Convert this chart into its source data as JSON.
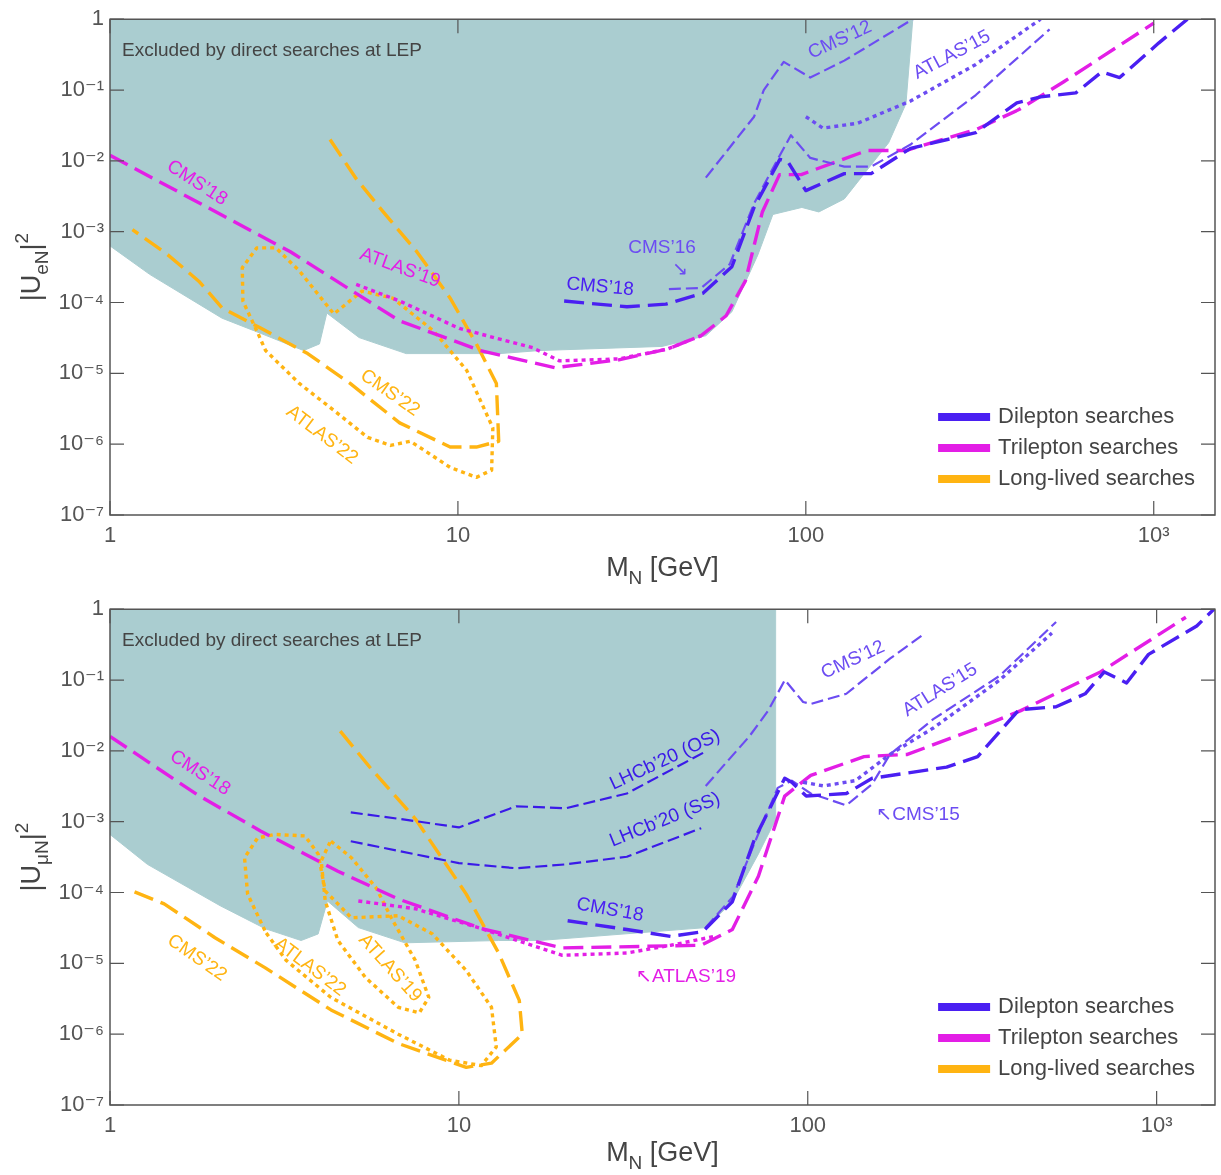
{
  "chart_data": [
    {
      "type": "line",
      "xlabel": "M$_{N}$ [GeV]",
      "ylabel": "|U$_{eN}$|$^{2}$",
      "log": "xy",
      "legend": "bottom right",
      "xlim": [
        1,
        1500
      ],
      "ylim": [
        1e-07,
        1
      ],
      "xticks": [
        1,
        10,
        100,
        {
          "value": 1000,
          "label": "10³"
        }
      ],
      "yticks": [
        {
          "value": 1e-07,
          "label": "10⁻⁷"
        },
        {
          "value": 1e-06,
          "label": "10⁻⁶"
        },
        {
          "value": 1e-05,
          "label": "10⁻⁵"
        },
        {
          "value": 0.0001,
          "label": "10⁻⁴"
        },
        {
          "value": 0.001,
          "label": "10⁻³"
        },
        {
          "value": 0.01,
          "label": "10⁻²"
        },
        {
          "value": 0.1,
          "label": "10⁻¹"
        },
        1
      ],
      "series": [
        {
          "color": "#aacdd0",
          "x": [
            1,
            1.3,
            2.1,
            2.7,
            3.6,
            4.0,
            4.2,
            5.2,
            7.1,
            13.2,
            17.2,
            38.6,
            51.6,
            61.3,
            72.8,
            80.4,
            97.4,
            109,
            129,
            173,
            194,
            203
          ],
          "values": [
            0.00063,
            0.00025,
            6e-05,
            3.7e-05,
            2.1e-05,
            2.6e-05,
            7.1e-05,
            3.2e-05,
            1.9e-05,
            1.9e-05,
            2.1e-05,
            2.4e-05,
            3.4e-05,
            7.4e-05,
            0.00047,
            0.00175,
            0.0022,
            0.0019,
            0.0029,
            0.018,
            0.064,
            1
          ],
          "lower": [
            0.00063,
            0.00025,
            6e-05,
            3.7e-05,
            2.1e-05,
            2.6e-05,
            7.1e-05,
            3.2e-05,
            1.9e-05,
            1.9e-05,
            2.1e-05,
            2.4e-05,
            3.4e-05,
            7.4e-05,
            0.00047,
            0.00175,
            0.0022,
            0.0019,
            0.0029,
            0.018,
            0.064,
            1
          ],
          "upper": [
            1,
            1,
            1,
            1,
            1,
            1,
            1,
            1,
            1,
            1,
            1,
            1,
            1,
            1,
            1,
            1,
            1,
            1,
            1,
            1,
            1,
            1
          ]
        },
        {
          "name": "Dilepton searches",
          "color": "#4a1ff2",
          "line_style": "dashed",
          "x": [
            20.2,
            30.6,
            39.6,
            50.6,
            61.3,
            71,
            84.2,
            88.7,
            100,
            129,
            154,
            200,
            308,
            404,
            473,
            597,
            709,
            798,
            1033,
            1250
          ],
          "values": [
            0.000105,
            8.7e-05,
            9.5e-05,
            0.000135,
            0.00032,
            0.0022,
            0.0105,
            0.0098,
            0.0038,
            0.0066,
            0.0066,
            0.015,
            0.025,
            0.066,
            0.08,
            0.091,
            0.18,
            0.15,
            0.46,
            1
          ]
        },
        {
          "color": "#6c4cf2",
          "line_style": "dashed",
          "x": [
            40.4,
            50,
            60.5,
            71,
            83,
            90.6,
            103,
            129,
            154,
            200,
            308,
            502
          ],
          "values": [
            0.000155,
            0.00016,
            0.00035,
            0.0025,
            0.0105,
            0.023,
            0.011,
            0.0083,
            0.0083,
            0.017,
            0.085,
            0.72
          ]
        },
        {
          "color": "#6c4cf2",
          "line_style": "dashed",
          "x": [
            51.6,
            71,
            75.7,
            86.4,
            103,
            129,
            203
          ],
          "values": [
            0.0058,
            0.042,
            0.1,
            0.25,
            0.15,
            0.26,
            1
          ]
        },
        {
          "color": "#6c4cf2",
          "line_style": "dotted",
          "x": [
            100,
            112,
            141,
            200,
            308,
            473
          ],
          "values": [
            0.042,
            0.029,
            0.034,
            0.07,
            0.23,
            1
          ]
        },
        {
          "name": "Trilepton searches",
          "color": "#e31ee6",
          "line_style": "dashed",
          "x": [
            1,
            3.3,
            6.8,
            11.6,
            19,
            29,
            40,
            50,
            59,
            67,
            75,
            84,
            97,
            150,
            194,
            310,
            410,
            550,
            1000
          ],
          "values": [
            0.012,
            0.00052,
            5.5e-05,
            2.1e-05,
            1.2e-05,
            1.55e-05,
            2.2e-05,
            3.4e-05,
            6.5e-05,
            0.0002,
            0.0019,
            0.0064,
            0.0064,
            0.014,
            0.014,
            0.028,
            0.053,
            0.13,
            0.88
          ]
        },
        {
          "color": "#e31ee6",
          "line_style": "dotted",
          "x": [
            5.1,
            6.8,
            10.1,
            16.4,
            19.6,
            29,
            40,
            50
          ],
          "values": [
            0.00018,
            0.000105,
            4.3e-05,
            2.3e-05,
            1.5e-05,
            1.6e-05,
            2.2e-05,
            3.4e-05
          ]
        },
        {
          "name": "Long-lived searches",
          "color": "#ffb412",
          "line_style": "dashed",
          "x": [
            4.29,
            5.1,
            6.1,
            7.6,
            9.5,
            11.3,
            12.9,
            13.1,
            11.3,
            9.5,
            6.8,
            4.9,
            3.7,
            2.7,
            2.1,
            1.8,
            1.46,
            1.16
          ],
          "values": [
            0.02,
            0.0056,
            0.0019,
            0.00053,
            0.000115,
            2.6e-05,
            7.2e-06,
            1.1e-06,
            9.1e-07,
            9.1e-07,
            2e-06,
            7.2e-06,
            1.9e-05,
            4.4e-05,
            8.4e-05,
            0.0002,
            0.00048,
            0.00107
          ]
        },
        {
          "color": "#ffb412",
          "line_style": "dotted",
          "x": [
            2.64,
            2.41,
            2.4,
            2.64,
            3.0,
            3.5,
            4.4,
            5.3,
            6.5,
            8.5,
            10.6,
            12.6,
            12.5,
            11.3,
            9.5,
            7.3,
            6.4,
            5.5,
            4.4,
            3.5,
            2.8,
            2.66
          ],
          "values": [
            4e-05,
            0.000105,
            0.00031,
            0.00059,
            0.00059,
            0.00028,
            6.9e-05,
            0.000145,
            0.000115,
            4e-05,
            1.1e-05,
            1.7e-06,
            4.3e-07,
            3.4e-07,
            4.7e-07,
            1.1e-06,
            9.6e-07,
            1.25e-06,
            3e-06,
            7.2e-06,
            2.1e-05,
            3.7e-05
          ]
        }
      ],
      "annotations": [
        "Excluded by direct searches at LEP",
        "CMS’18",
        "ATLAS’19",
        "CMS’22",
        "ATLAS’22",
        "CMS’18",
        "CMS’16",
        "↘",
        "CMS’12",
        "ATLAS’15"
      ]
    },
    {
      "type": "line",
      "xlabel": "M$_{N}$ [GeV]",
      "ylabel": "|U$_{μN}$|$^{2}$",
      "log": "xy",
      "legend": "bottom right",
      "xlim": [
        1,
        1470
      ],
      "ylim": [
        1e-07,
        1
      ],
      "xticks": [
        1,
        10,
        100,
        {
          "value": 1000,
          "label": "10³"
        }
      ],
      "yticks": [
        {
          "value": 1e-07,
          "label": "10⁻⁷"
        },
        {
          "value": 1e-06,
          "label": "10⁻⁶"
        },
        {
          "value": 1e-05,
          "label": "10⁻⁵"
        },
        {
          "value": 0.0001,
          "label": "10⁻⁴"
        },
        {
          "value": 0.001,
          "label": "10⁻³"
        },
        {
          "value": 0.01,
          "label": "10⁻²"
        },
        {
          "value": 0.1,
          "label": "10⁻¹"
        },
        1
      ],
      "series": [
        {
          "color": "#aacdd0",
          "x": [
            1,
            1.28,
            2.07,
            2.78,
            3.53,
            3.95,
            4.2,
            5.15,
            7.0,
            13.0,
            17.0,
            51.2,
            60.8,
            72.2,
            80.9,
            80.9
          ],
          "values": [
            0.00066,
            0.00025,
            6.5e-05,
            3.1e-05,
            2.1e-05,
            2.6e-05,
            7.6e-05,
            3.2e-05,
            1.95e-05,
            2.1e-05,
            2.1e-05,
            3.2e-05,
            7.4e-05,
            0.00035,
            0.00107,
            1
          ],
          "lower": [
            0.00066,
            0.00025,
            6.5e-05,
            3.1e-05,
            2.1e-05,
            2.6e-05,
            7.6e-05,
            3.2e-05,
            1.95e-05,
            2.1e-05,
            2.1e-05,
            3.2e-05,
            7.4e-05,
            0.00035,
            0.00107,
            1
          ],
          "upper": [
            1,
            1,
            1,
            1,
            1,
            1,
            1,
            1,
            1,
            1,
            1,
            1,
            1,
            1,
            1,
            1
          ]
        },
        {
          "name": "Dilepton searches",
          "color": "#4a1ff2",
          "line_style": "dashed",
          "x": [
            20.5,
            30.3,
            40.5,
            50,
            60.8,
            70.3,
            85.9,
            90,
            99,
            129,
            153,
            250,
            307,
            403,
            515,
            624,
            708,
            820,
            948,
            1303,
            1460
          ],
          "values": [
            4e-05,
            3e-05,
            2.4e-05,
            2.8e-05,
            7.4e-05,
            0.00056,
            0.0041,
            0.0036,
            0.0023,
            0.0025,
            0.0041,
            0.0059,
            0.0083,
            0.038,
            0.042,
            0.064,
            0.13,
            0.091,
            0.23,
            0.58,
            1
          ]
        },
        {
          "color": "#6c4cf2",
          "line_style": "dashed",
          "x": [
            51,
            61,
            70,
            82,
            90,
            102,
            129,
            153,
            172,
            229,
            355,
            515
          ],
          "values": [
            3.2e-05,
            8.7e-05,
            0.00047,
            0.003,
            0.0038,
            0.0025,
            0.0017,
            0.0034,
            0.0089,
            0.028,
            0.115,
            0.66
          ]
        },
        {
          "color": "#6c4cf2",
          "line_style": "dotted",
          "x": [
            97,
            111,
            137,
            172,
            229,
            355,
            501
          ],
          "values": [
            0.0036,
            0.0032,
            0.0038,
            0.0089,
            0.021,
            0.1,
            0.46
          ]
        },
        {
          "color": "#6c4cf2",
          "line_style": "dashed",
          "x": [
            51,
            68,
            77,
            86,
            97,
            102,
            129,
            172,
            213
          ],
          "values": [
            0.0032,
            0.016,
            0.037,
            0.1,
            0.049,
            0.046,
            0.064,
            0.2,
            0.43
          ]
        },
        {
          "color": "#3a1ae8",
          "line_style": "dashed",
          "x": [
            4.9,
            7.0,
            10,
            14.6,
            20.3,
            30.3,
            51
          ],
          "values": [
            0.00135,
            0.00107,
            0.00083,
            0.00165,
            0.00155,
            0.0025,
            0.0098
          ]
        },
        {
          "color": "#3a1ae8",
          "line_style": "dashed",
          "x": [
            4.9,
            10,
            14.6,
            20.3,
            30.3,
            49.5
          ],
          "values": [
            0.00053,
            0.00026,
            0.00022,
            0.00025,
            0.00032,
            0.00081
          ]
        },
        {
          "name": "Trilepton searches",
          "color": "#e31ee6",
          "line_style": "dashed",
          "x": [
            1,
            1.78,
            2.7,
            4.5,
            6.7,
            11.6,
            19.8,
            49.5,
            60.8,
            72.2,
            85.9,
            102,
            145,
            193,
            307,
            408,
            690,
            1213
          ],
          "values": [
            0.016,
            0.0024,
            0.00074,
            0.0002,
            8.1e-05,
            3.1e-05,
            1.65e-05,
            1.8e-05,
            3e-05,
            0.00017,
            0.0023,
            0.0045,
            0.0083,
            0.0089,
            0.021,
            0.037,
            0.13,
            0.77
          ]
        },
        {
          "color": "#e31ee6",
          "line_style": "dotted",
          "x": [
            5.15,
            7.5,
            11.6,
            19.8,
            30.3,
            40.5,
            54
          ],
          "values": [
            7.6e-05,
            5.9e-05,
            3.1e-05,
            1.3e-05,
            1.4e-05,
            1.8e-05,
            2.4e-05
          ]
        },
        {
          "name": "Long-lived searches",
          "color": "#ffb412",
          "line_style": "dashed",
          "x": [
            4.57,
            5.6,
            7.5,
            10.5,
            13.0,
            14.9,
            15.2,
            12.4,
            10.5,
            6.7,
            4.3,
            2.78,
            2.0,
            1.43,
            1.16
          ],
          "values": [
            0.019,
            0.0056,
            0.0011,
            9.5e-05,
            1.4e-05,
            3e-06,
            1e-06,
            3.9e-07,
            3.4e-07,
            7.4e-07,
            2.2e-06,
            8.7e-06,
            2.3e-05,
            6.9e-05,
            0.000105
          ]
        },
        {
          "color": "#ffb412",
          "line_style": "dotted",
          "x": [
            2.78,
            2.48,
            2.43,
            2.65,
            2.97,
            3.62,
            3.95,
            4.14,
            4.92,
            6.7,
            8.4,
            10.5,
            12.4,
            12.8,
            11.6,
            9.4,
            6.7,
            4.3,
            3.2,
            2.8
          ],
          "values": [
            2.9e-05,
            9.5e-05,
            0.00031,
            0.00059,
            0.00066,
            0.00063,
            0.00035,
            0.000105,
            4.4e-05,
            4.7e-05,
            2.6e-05,
            7.9e-06,
            2.4e-06,
            6.6e-07,
            3.6e-07,
            4.3e-07,
            1e-06,
            3.3e-06,
            1.1e-05,
            2.7e-05
          ]
        },
        {
          "color": "#ffb412",
          "line_style": "dotted",
          "x": [
            4.3,
            4.92,
            5.8,
            6.4,
            7.5,
            8.2,
            7.7,
            6.7,
            5.4,
            4.5,
            4.14,
            4.03,
            4.27
          ],
          "values": [
            0.00053,
            0.00031,
            0.000115,
            4.4e-05,
            1.1e-05,
            3.3e-06,
            2e-06,
            2.4e-06,
            6.3e-06,
            2.1e-05,
            7.6e-05,
            0.00028,
            0.00051
          ]
        }
      ],
      "annotations": [
        "Excluded by direct searches at LEP",
        "CMS’18",
        "CMS’22",
        "ATLAS’22",
        "ATLAS’19",
        "LHCb’20 (OS)",
        "LHCb’20 (SS)",
        "CMS’12",
        "ATLAS’15",
        "↖CMS’15",
        "CMS’18",
        "↖ATLAS’19"
      ]
    }
  ]
}
